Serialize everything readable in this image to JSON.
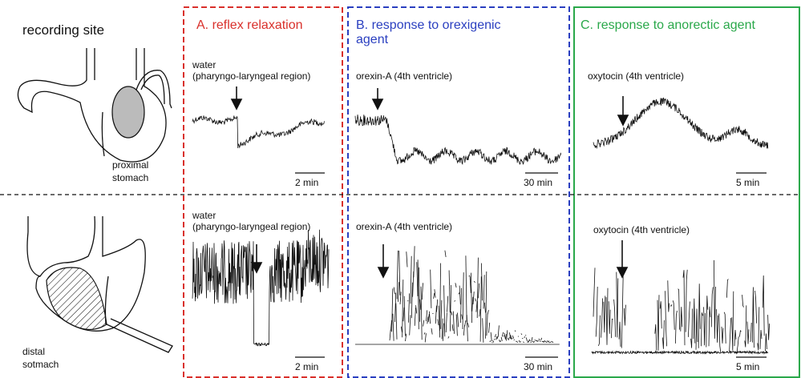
{
  "recording_site": {
    "title": "recording site",
    "proximal": [
      "proximal",
      "stomach"
    ],
    "distal": [
      "distal",
      "sotmach"
    ]
  },
  "panels": [
    {
      "title": [
        "A. reflex relaxation"
      ],
      "top": {
        "label": [
          "water",
          "(pharyngo-laryngeal region)"
        ],
        "scale": "2 min"
      },
      "bottom": {
        "label": [
          "water",
          "(pharyngo-laryngeal region)"
        ],
        "scale": "2 min"
      }
    },
    {
      "title": [
        "B. response to orexigenic",
        "agent"
      ],
      "top": {
        "label": [
          "orexin-A (4th ventricle)"
        ],
        "scale": "30 min"
      },
      "bottom": {
        "label": [
          "orexin-A (4th ventricle)"
        ],
        "scale": "30 min"
      }
    },
    {
      "title": [
        "C. response to anorectic agent"
      ],
      "top": {
        "label": [
          "oxytocin (4th ventricle)"
        ],
        "scale": "5 min"
      },
      "bottom": {
        "label": [
          "oxytocin (4th ventricle)"
        ],
        "scale": "5 min"
      }
    }
  ]
}
